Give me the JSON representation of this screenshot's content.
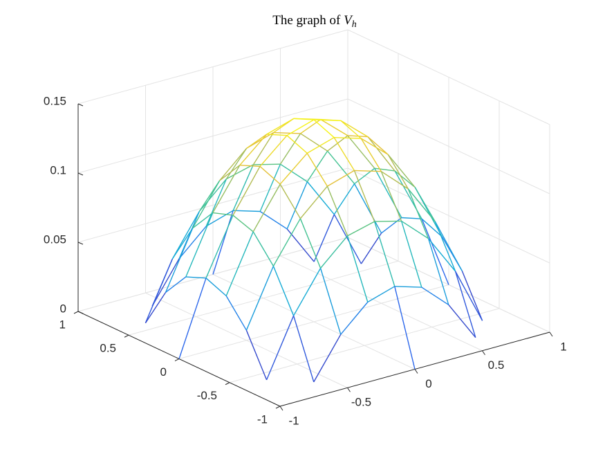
{
  "chart_data": {
    "type": "surface",
    "title": [
      "The graph of ",
      "V",
      "h"
    ],
    "x": [
      -1,
      -0.8,
      -0.6,
      -0.4,
      -0.2,
      0,
      0.2,
      0.4,
      0.6,
      0.8,
      1
    ],
    "y": [
      -1,
      -0.8,
      -0.6,
      -0.4,
      -0.2,
      0,
      0.2,
      0.4,
      0.6,
      0.8,
      1
    ],
    "z": [
      [
        null,
        null,
        null,
        null,
        null,
        0,
        null,
        null,
        null,
        null,
        null
      ],
      [
        null,
        null,
        0,
        0.029,
        0.047,
        0.053,
        0.047,
        0.029,
        0,
        null,
        null
      ],
      [
        null,
        0,
        0.041,
        0.07,
        0.088,
        0.093,
        0.088,
        0.07,
        0.041,
        0,
        null
      ],
      [
        null,
        0.029,
        0.07,
        0.099,
        0.117,
        0.123,
        0.117,
        0.099,
        0.07,
        0.029,
        null
      ],
      [
        null,
        0.047,
        0.088,
        0.117,
        0.134,
        0.14,
        0.134,
        0.117,
        0.088,
        0.047,
        null
      ],
      [
        0,
        0.053,
        0.093,
        0.123,
        0.14,
        0.146,
        0.14,
        0.123,
        0.093,
        0.053,
        0
      ],
      [
        null,
        0.047,
        0.088,
        0.117,
        0.134,
        0.14,
        0.134,
        0.117,
        0.088,
        0.047,
        null
      ],
      [
        null,
        0.029,
        0.07,
        0.099,
        0.117,
        0.123,
        0.117,
        0.099,
        0.07,
        0.029,
        null
      ],
      [
        null,
        0,
        0.041,
        0.07,
        0.088,
        0.093,
        0.088,
        0.07,
        0.041,
        0,
        null
      ],
      [
        null,
        null,
        0,
        0.029,
        0.047,
        0.053,
        0.047,
        0.029,
        0,
        null,
        null
      ],
      [
        null,
        null,
        null,
        null,
        null,
        0,
        null,
        null,
        null,
        null,
        null
      ]
    ],
    "xlim": [
      -1,
      1
    ],
    "ylim": [
      -1,
      1
    ],
    "zlim": [
      0,
      0.15
    ],
    "xticks": [
      -1,
      -0.5,
      0,
      0.5,
      1
    ],
    "yticks": [
      -1,
      -0.5,
      0,
      0.5,
      1
    ],
    "zticks": [
      0,
      0.05,
      0.1,
      0.15
    ],
    "grid": true
  }
}
